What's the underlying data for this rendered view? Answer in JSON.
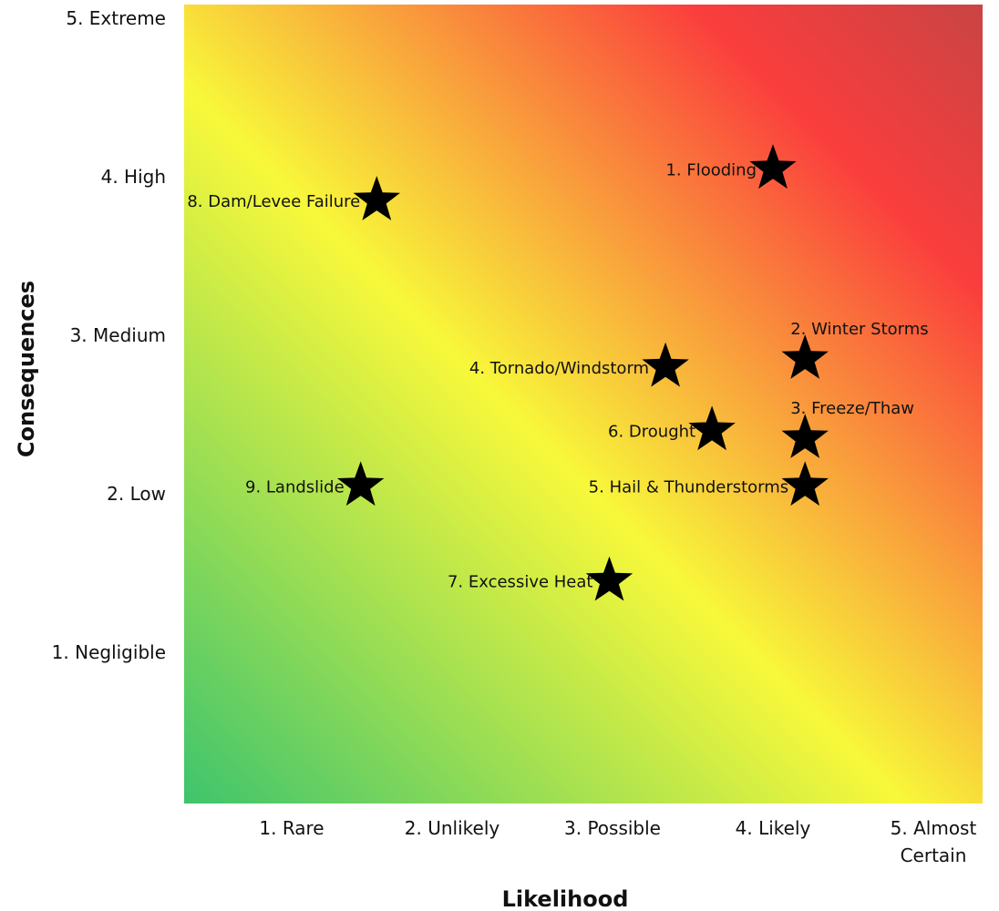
{
  "chart_data": {
    "type": "scatter",
    "xlabel": "Likelihood",
    "ylabel": "Consequences",
    "x_ticks": [
      {
        "value": 1,
        "lines": [
          "1. Rare"
        ]
      },
      {
        "value": 2,
        "lines": [
          "2. Unlikely"
        ]
      },
      {
        "value": 3,
        "lines": [
          "3. Possible"
        ]
      },
      {
        "value": 4,
        "lines": [
          "4. Likely"
        ]
      },
      {
        "value": 5,
        "lines": [
          "5. Almost",
          "Certain"
        ]
      }
    ],
    "y_ticks": [
      {
        "value": 1,
        "label": "1. Negligible"
      },
      {
        "value": 2,
        "label": "2. Low"
      },
      {
        "value": 3,
        "label": "3. Medium"
      },
      {
        "value": 4,
        "label": "4. High"
      },
      {
        "value": 5,
        "label": "5. Extreme"
      }
    ],
    "xlim": [
      0,
      5
    ],
    "ylim": [
      0,
      5
    ],
    "background": "risk gradient",
    "gradient_colors": [
      "#3ec46d",
      "#f8f83a",
      "#fa3d3d",
      "#c94444"
    ],
    "marker": "star",
    "points": [
      {
        "label": "1. Flooding",
        "x": 4.0,
        "y": 4.05,
        "label_pos": "left"
      },
      {
        "label": "2. Winter Storms",
        "x": 4.2,
        "y": 2.85,
        "label_pos": "above"
      },
      {
        "label": "3. Freeze/Thaw",
        "x": 4.2,
        "y": 2.35,
        "label_pos": "above"
      },
      {
        "label": "4. Tornado/Windstorm",
        "x": 3.33,
        "y": 2.8,
        "label_pos": "left"
      },
      {
        "label": "5. Hail & Thunderstorms",
        "x": 4.2,
        "y": 2.05,
        "label_pos": "left"
      },
      {
        "label": "6. Drought",
        "x": 3.62,
        "y": 2.4,
        "label_pos": "left"
      },
      {
        "label": "7. Excessive Heat",
        "x": 2.98,
        "y": 1.45,
        "label_pos": "left"
      },
      {
        "label": "8. Dam/Levee Failure",
        "x": 1.53,
        "y": 3.85,
        "label_pos": "left"
      },
      {
        "label": "9. Landslide",
        "x": 1.43,
        "y": 2.05,
        "label_pos": "left"
      }
    ]
  }
}
